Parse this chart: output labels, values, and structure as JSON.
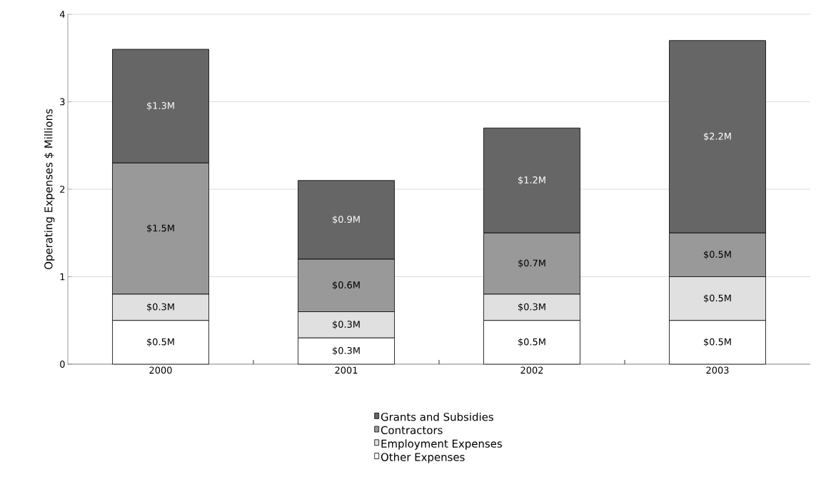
{
  "chart_data": {
    "type": "bar",
    "stacked": true,
    "ylabel": "Operating Expenses $ Millions",
    "categories": [
      "2000",
      "2001",
      "2002",
      "2003"
    ],
    "series": [
      {
        "name": "Other Expenses",
        "color": "#ffffff",
        "values": [
          0.5,
          0.3,
          0.5,
          0.5
        ],
        "value_labels": [
          "$0.5M",
          "$0.3M",
          "$0.5M",
          "$0.5M"
        ]
      },
      {
        "name": "Employment Expenses",
        "color": "#e0e0e0",
        "values": [
          0.3,
          0.3,
          0.3,
          0.5
        ],
        "value_labels": [
          "$0.3M",
          "$0.3M",
          "$0.3M",
          "$0.5M"
        ]
      },
      {
        "name": "Contractors",
        "color": "#999999",
        "values": [
          1.5,
          0.6,
          0.7,
          0.5
        ],
        "value_labels": [
          "$1.5M",
          "$0.6M",
          "$0.7M",
          "$0.5M"
        ]
      },
      {
        "name": "Grants and Subsidies",
        "color": "#666666",
        "values": [
          1.3,
          0.9,
          1.2,
          2.2
        ],
        "value_labels": [
          "$1.3M",
          "$0.9M",
          "$1.2M",
          "$2.2M"
        ]
      }
    ],
    "ylim": [
      0,
      4
    ],
    "yticks": [
      0,
      1,
      2,
      3,
      4
    ],
    "grid": "y",
    "legend": "bottom"
  }
}
